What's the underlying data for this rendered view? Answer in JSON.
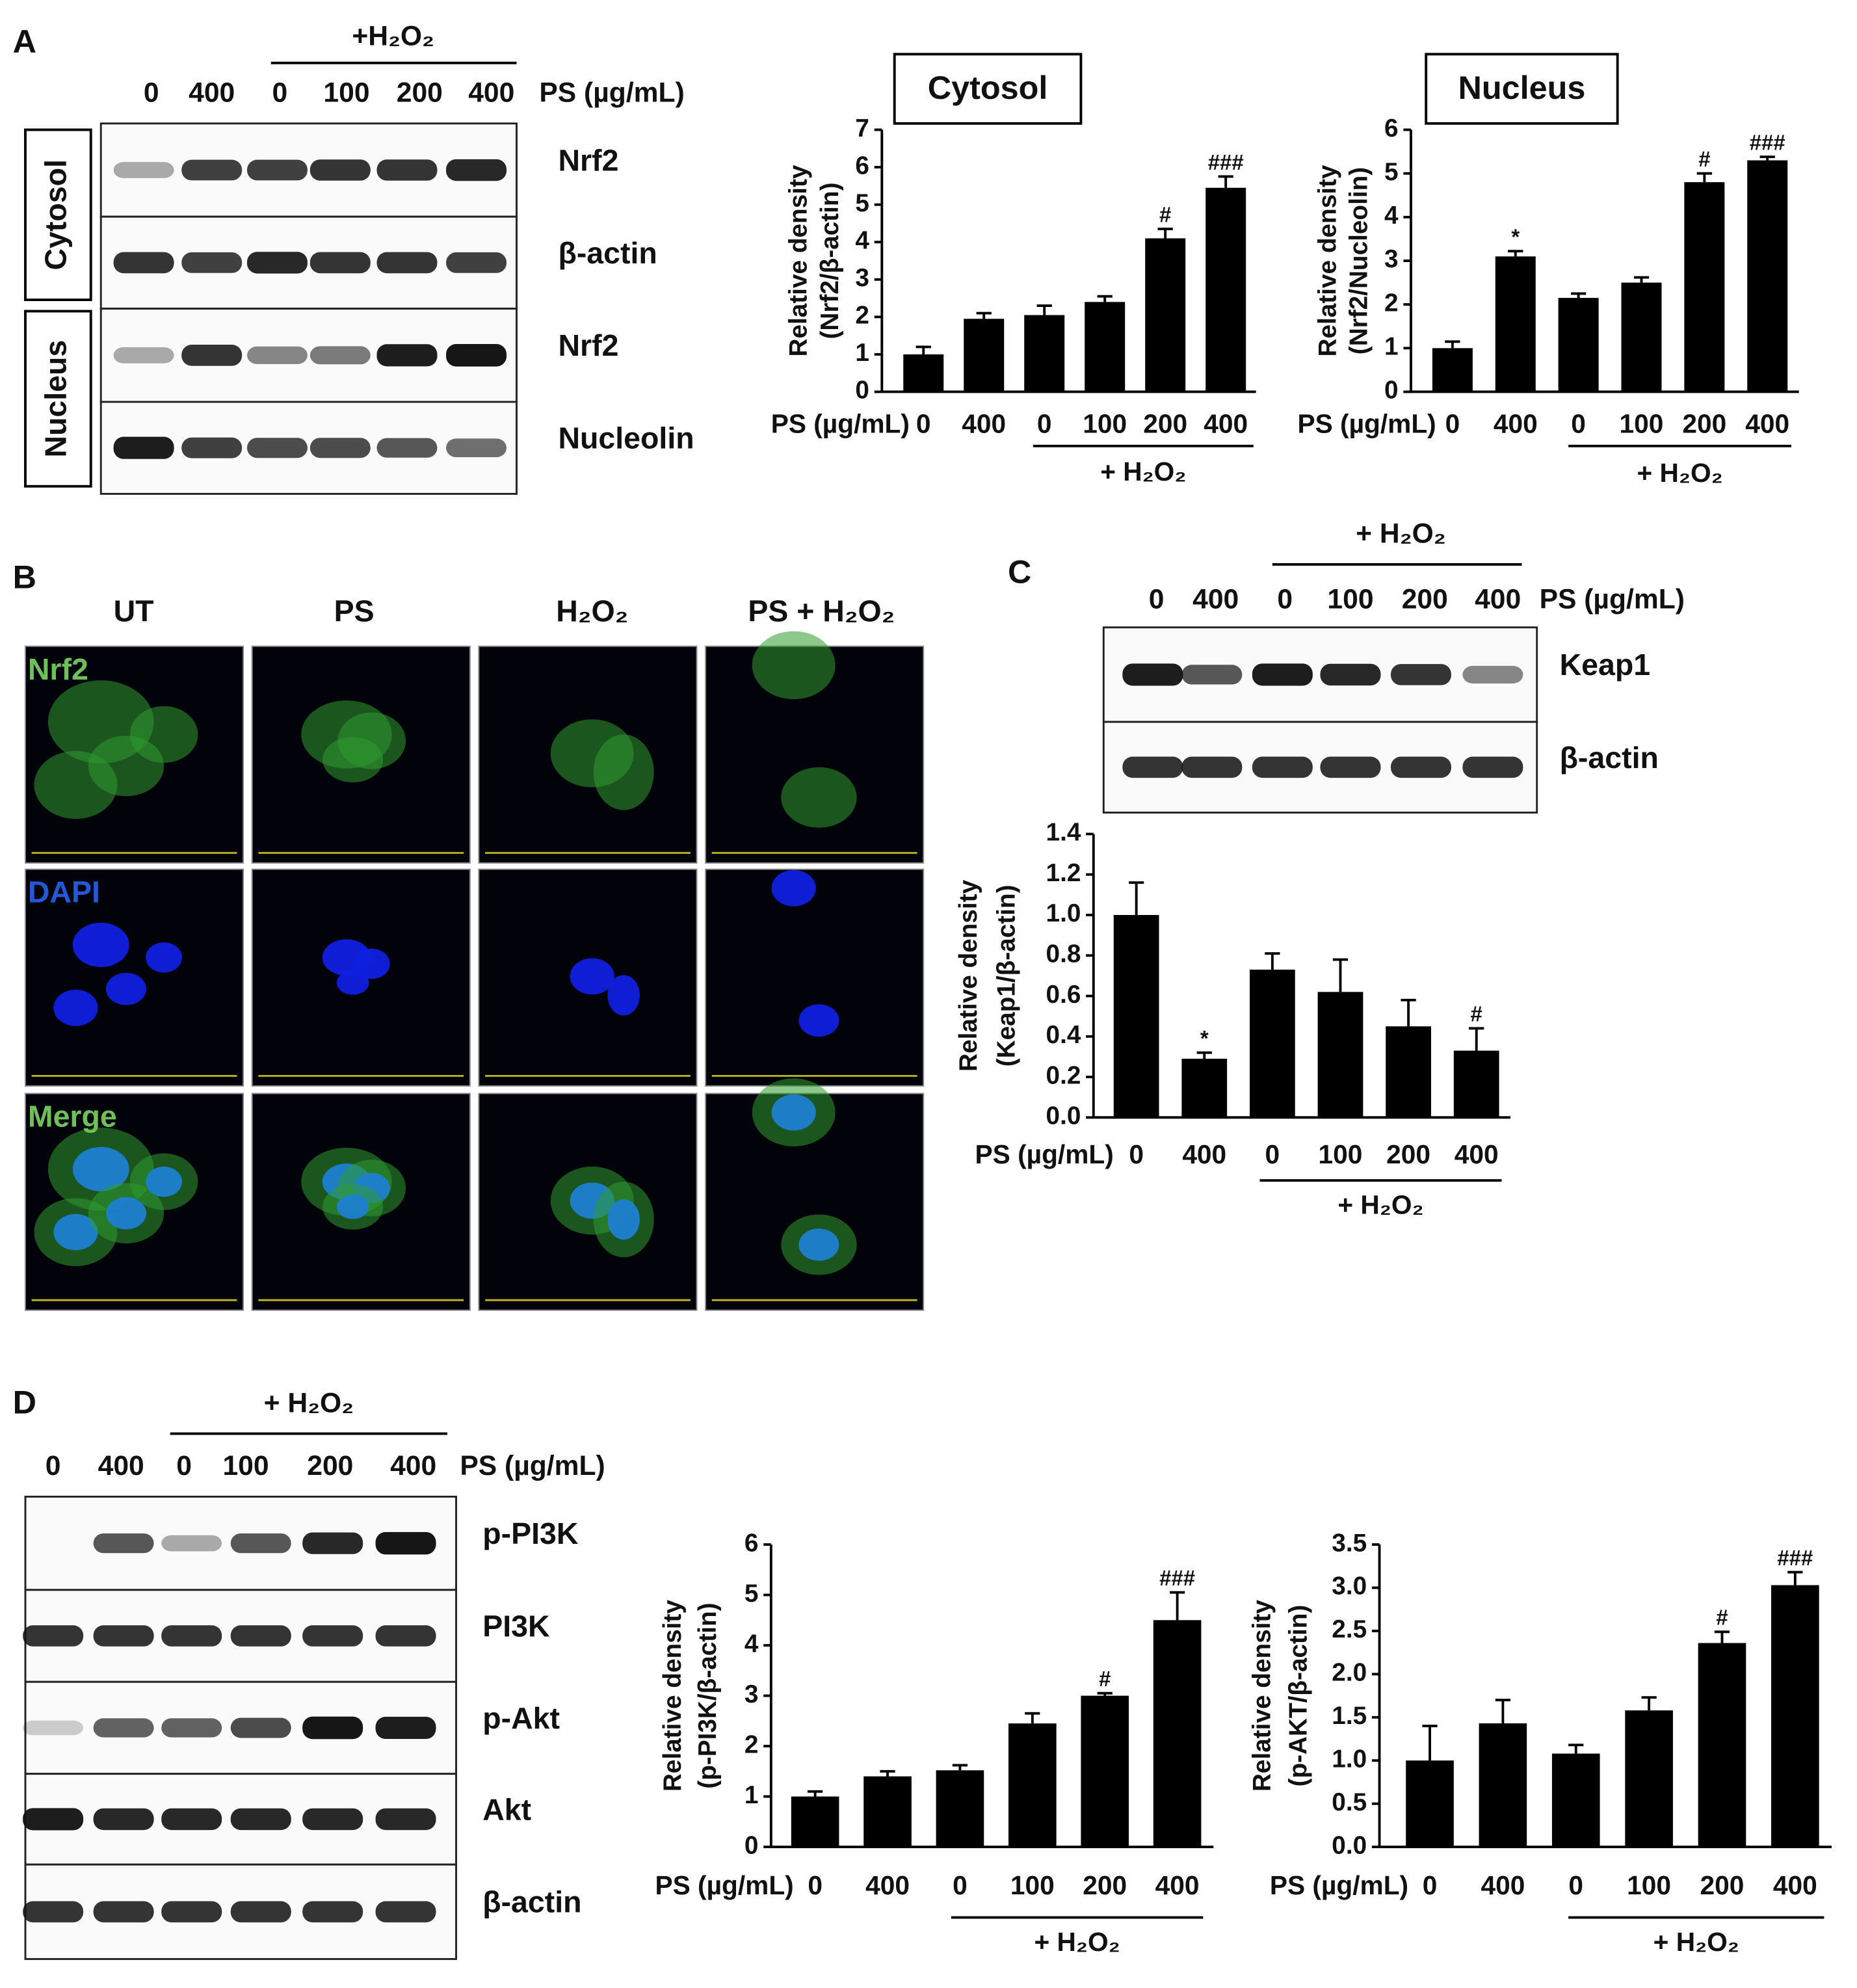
{
  "panel_labels": [
    "A",
    "B",
    "C",
    "D"
  ],
  "blots": [
    {
      "dose_label": "PS (µg/mL)",
      "group_label": "+H₂O₂",
      "lanes": [
        "0",
        "400",
        "0",
        "100",
        "200",
        "400"
      ],
      "rows": [
        "Nrf2",
        "β-actin",
        "Nrf2",
        "Nucleolin"
      ],
      "fractions": [
        "Cytosol",
        "Nucleus"
      ]
    },
    {
      "dose_label": "PS (µg/mL)",
      "group_label": "+ H₂O₂",
      "lanes": [
        "0",
        "400",
        "0",
        "100",
        "200",
        "400"
      ],
      "rows": [
        "Keap1",
        "β-actin"
      ]
    },
    {
      "dose_label": "PS (µg/mL)",
      "group_label": "+ H₂O₂",
      "lanes": [
        "0",
        "400",
        "0",
        "100",
        "200",
        "400"
      ],
      "rows": [
        "p-PI3K",
        "PI3K",
        "p-Akt",
        "Akt",
        "β-actin"
      ]
    }
  ],
  "imaging": {
    "columns": [
      "UT",
      "PS",
      "H₂O₂",
      "PS + H₂O₂"
    ],
    "rows": [
      "Nrf2",
      "DAPI",
      "Merge"
    ]
  },
  "chart_data": [
    {
      "type": "bar",
      "title": "Cytosol",
      "y_label": [
        "Relative density",
        "(Nrf2/β-actin)"
      ],
      "x_prefix": "PS (µg/mL)",
      "group_label": "+ H₂O₂",
      "categories": [
        "0",
        "400",
        "0",
        "100",
        "200",
        "400"
      ],
      "color": "#000000",
      "values": [
        1.0,
        1.95,
        2.05,
        2.4,
        4.1,
        5.45
      ],
      "errors": [
        0.2,
        0.15,
        0.25,
        0.15,
        0.25,
        0.3
      ],
      "annotations": [
        null,
        null,
        null,
        null,
        "#",
        "###"
      ],
      "ylim": [
        0,
        7
      ],
      "yticks": [
        0,
        1,
        2,
        3,
        4,
        5,
        6,
        7
      ]
    },
    {
      "type": "bar",
      "title": "Nucleus",
      "y_label": [
        "Relative density",
        "(Nrf2/Nucleolin)"
      ],
      "x_prefix": "PS (µg/mL)",
      "group_label": "+ H₂O₂",
      "categories": [
        "0",
        "400",
        "0",
        "100",
        "200",
        "400"
      ],
      "color": "#000000",
      "values": [
        1.0,
        3.1,
        2.15,
        2.5,
        4.8,
        5.3
      ],
      "errors": [
        0.15,
        0.12,
        0.1,
        0.12,
        0.2,
        0.08
      ],
      "annotations": [
        null,
        "*",
        null,
        null,
        "#",
        "###"
      ],
      "ylim": [
        0,
        6
      ],
      "yticks": [
        0,
        1,
        2,
        3,
        4,
        5,
        6
      ]
    },
    {
      "type": "bar",
      "y_label": [
        "Relative density",
        "(Keap1/β-actin)"
      ],
      "x_prefix": "PS (µg/mL)",
      "group_label": "+ H₂O₂",
      "categories": [
        "0",
        "400",
        "0",
        "100",
        "200",
        "400"
      ],
      "color": "#000000",
      "values": [
        1.0,
        0.29,
        0.73,
        0.62,
        0.45,
        0.33
      ],
      "errors": [
        0.16,
        0.03,
        0.08,
        0.16,
        0.13,
        0.11
      ],
      "annotations": [
        null,
        "*",
        null,
        null,
        null,
        "#"
      ],
      "ylim": [
        0,
        1.4
      ],
      "yticks": [
        {
          "value": 0,
          "label": "0.0"
        },
        {
          "value": 0.2,
          "label": "0.2"
        },
        {
          "value": 0.4,
          "label": "0.4"
        },
        {
          "value": 0.6,
          "label": "0.6"
        },
        {
          "value": 0.8,
          "label": "0.8"
        },
        {
          "value": 1,
          "label": "1.0"
        },
        {
          "value": 1.2,
          "label": "1.2"
        },
        {
          "value": 1.4,
          "label": "1.4"
        }
      ]
    },
    {
      "type": "bar",
      "y_label": [
        "Relative density",
        "(p-PI3K/β-actin)"
      ],
      "x_prefix": "PS (µg/mL)",
      "group_label": "+ H₂O₂",
      "categories": [
        "0",
        "400",
        "0",
        "100",
        "200",
        "400"
      ],
      "color": "#000000",
      "values": [
        1.0,
        1.4,
        1.52,
        2.45,
        3.0,
        4.5
      ],
      "errors": [
        0.1,
        0.1,
        0.1,
        0.2,
        0.05,
        0.55
      ],
      "annotations": [
        null,
        null,
        null,
        null,
        "#",
        "###"
      ],
      "ylim": [
        0,
        6
      ],
      "yticks": [
        0,
        1,
        2,
        3,
        4,
        5,
        6
      ]
    },
    {
      "type": "bar",
      "y_label": [
        "Relative density",
        "(p-AKT/β-actin)"
      ],
      "x_prefix": "PS (µg/mL)",
      "group_label": "+ H₂O₂",
      "categories": [
        "0",
        "400",
        "0",
        "100",
        "200",
        "400"
      ],
      "color": "#000000",
      "values": [
        1.0,
        1.43,
        1.08,
        1.58,
        2.36,
        3.03
      ],
      "errors": [
        0.4,
        0.27,
        0.1,
        0.15,
        0.13,
        0.15
      ],
      "annotations": [
        null,
        null,
        null,
        null,
        "#",
        "###"
      ],
      "ylim": [
        0,
        3.5
      ],
      "yticks": [
        {
          "value": 0,
          "label": "0.0"
        },
        {
          "value": 0.5,
          "label": "0.5"
        },
        {
          "value": 1,
          "label": "1.0"
        },
        {
          "value": 1.5,
          "label": "1.5"
        },
        {
          "value": 2,
          "label": "2.0"
        },
        {
          "value": 2.5,
          "label": "2.5"
        },
        {
          "value": 3,
          "label": "3.0"
        },
        {
          "value": 3.5,
          "label": "3.5"
        }
      ]
    }
  ]
}
